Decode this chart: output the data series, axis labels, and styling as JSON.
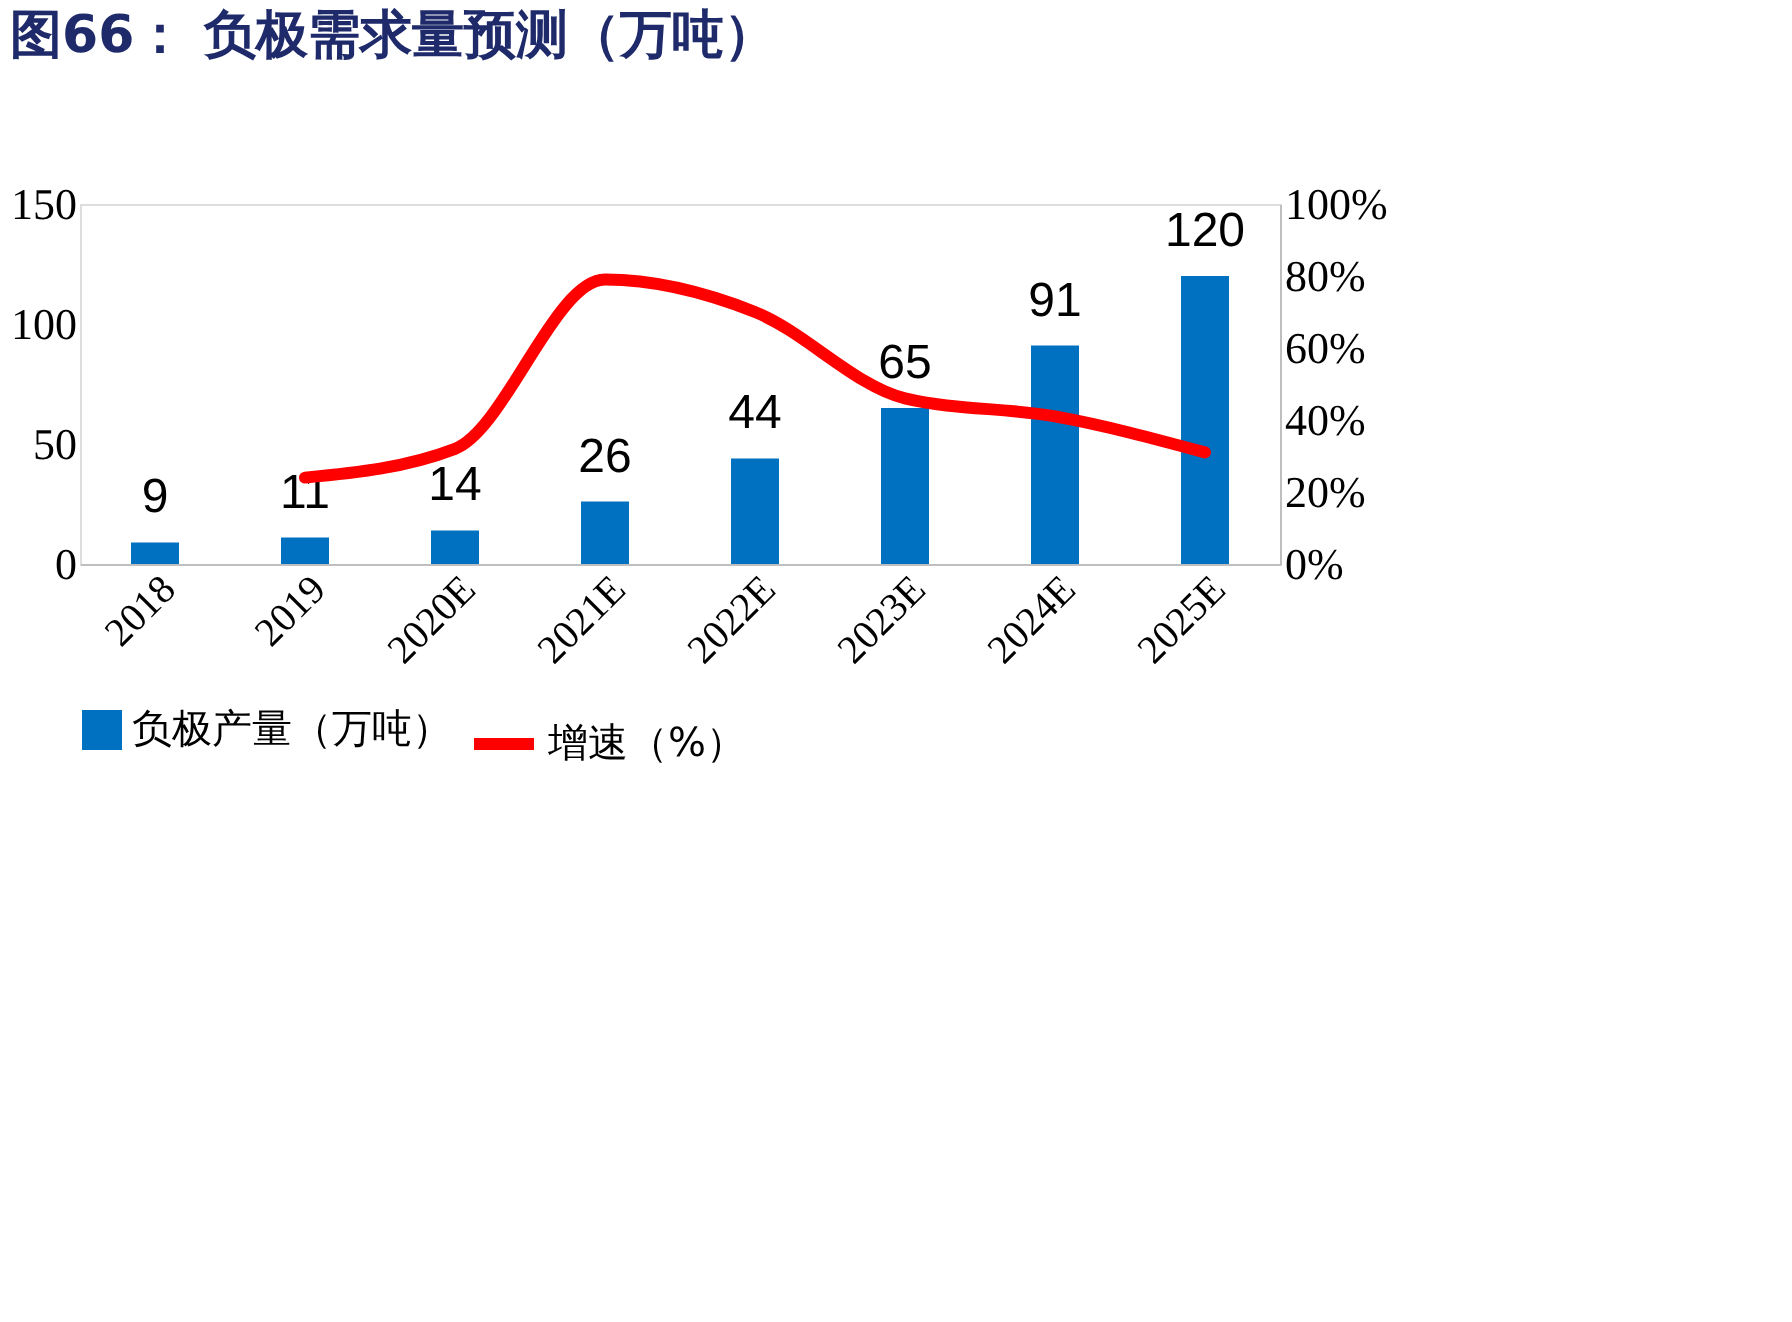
{
  "chart_data": {
    "type": "bar",
    "title": "图66：  负极需求量预测（万吨）",
    "categories": [
      "2018",
      "2019",
      "2020E",
      "2021E",
      "2022E",
      "2023E",
      "2024E",
      "2025E"
    ],
    "series": [
      {
        "name": "负极产量（万吨）",
        "color": "#0070c0",
        "values": [
          9,
          11,
          14,
          26,
          44,
          65,
          91,
          120
        ],
        "data_labels": true
      },
      {
        "name": "增速（%）",
        "type": "line",
        "axis": "y2",
        "color": "#ff0000",
        "values": [
          null,
          24,
          32,
          79,
          70,
          46,
          41,
          31
        ]
      }
    ],
    "ylim": [
      0,
      150
    ],
    "yticks": [
      0,
      50,
      100,
      150
    ],
    "y2lim": [
      0,
      100
    ],
    "y2ticks": [
      {
        "value": 0,
        "label": "0%"
      },
      {
        "value": 20,
        "label": "20%"
      },
      {
        "value": 40,
        "label": "40%"
      },
      {
        "value": 60,
        "label": "60%"
      },
      {
        "value": 80,
        "label": "80%"
      },
      {
        "value": 100,
        "label": "100%"
      }
    ],
    "grid": false,
    "legend": "bottom",
    "marker": "none"
  }
}
